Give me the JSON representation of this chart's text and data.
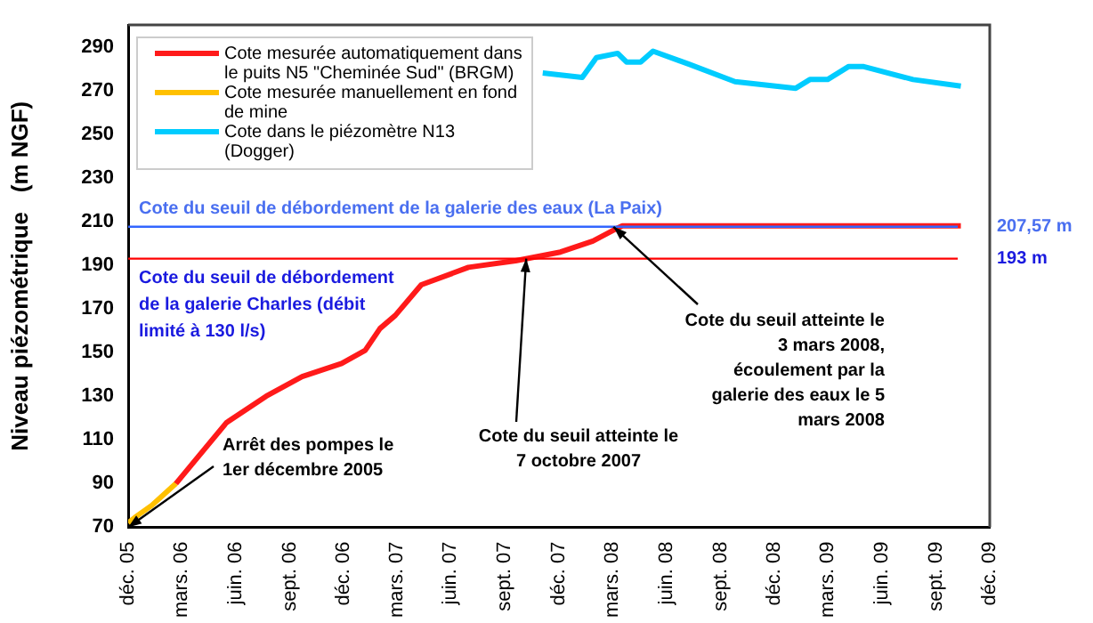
{
  "chart_data": {
    "type": "line",
    "ylabel": "Niveau piézométrique   (m NGF)",
    "ylim": [
      70,
      300
    ],
    "yticks": [
      70,
      90,
      110,
      130,
      150,
      170,
      190,
      210,
      230,
      250,
      270,
      290
    ],
    "xlim": [
      "2005-12-01",
      "2009-12-01"
    ],
    "xticks": [
      {
        "value": "2005-12-01",
        "label": "déc. 05"
      },
      {
        "value": "2006-03-01",
        "label": "mars. 06"
      },
      {
        "value": "2006-06-01",
        "label": "juin. 06"
      },
      {
        "value": "2006-09-01",
        "label": "sept. 06"
      },
      {
        "value": "2006-12-01",
        "label": "déc. 06"
      },
      {
        "value": "2007-03-01",
        "label": "mars. 07"
      },
      {
        "value": "2007-06-01",
        "label": "juin. 07"
      },
      {
        "value": "2007-09-01",
        "label": "sept. 07"
      },
      {
        "value": "2007-12-01",
        "label": "déc. 07"
      },
      {
        "value": "2008-03-01",
        "label": "mars. 08"
      },
      {
        "value": "2008-06-01",
        "label": "juin. 08"
      },
      {
        "value": "2008-09-01",
        "label": "sept. 08"
      },
      {
        "value": "2008-12-01",
        "label": "déc. 08"
      },
      {
        "value": "2009-03-01",
        "label": "mars. 09"
      },
      {
        "value": "2009-06-01",
        "label": "juin. 09"
      },
      {
        "value": "2009-09-01",
        "label": "sept. 09"
      },
      {
        "value": "2009-12-01",
        "label": "déc. 09"
      }
    ],
    "grid": false,
    "legend": "top left",
    "marker": "none",
    "line_style": "solid",
    "series": [
      {
        "name": "Cote mesurée automatiquement dans le puits N5 \"Cheminée Sud\" (BRGM)",
        "color": "#ff1a1a",
        "x": [
          "2006-02-20",
          "2006-05-17",
          "2006-07-23",
          "2006-09-22",
          "2006-11-28",
          "2007-01-07",
          "2007-02-01",
          "2007-02-27",
          "2007-04-12",
          "2007-07-01",
          "2007-09-19",
          "2007-12-04",
          "2008-01-28",
          "2008-03-10",
          "2008-03-18",
          "2008-06-01",
          "2008-12-01",
          "2009-06-01",
          "2009-10-13"
        ],
        "values": [
          90,
          118,
          130,
          139,
          145,
          151,
          161,
          167,
          181,
          189,
          192,
          196,
          201,
          207,
          208,
          208,
          208,
          208,
          208
        ]
      },
      {
        "name": "Cote mesurée manuellement en fond de mine",
        "color": "#ffc000",
        "x": [
          "2005-12-01",
          "2005-12-15",
          "2006-01-10",
          "2006-02-20"
        ],
        "values": [
          72,
          75,
          80,
          90
        ]
      },
      {
        "name": "Cote dans le piézomètre N13 (Dogger)",
        "color": "#00ccff",
        "x": [
          "2007-11-04",
          "2008-01-10",
          "2008-02-03",
          "2008-03-10",
          "2008-03-25",
          "2008-04-18",
          "2008-05-09",
          "2008-07-09",
          "2008-09-25",
          "2009-01-06",
          "2009-01-30",
          "2009-03-01",
          "2009-04-06",
          "2009-04-30",
          "2009-07-24",
          "2009-10-13"
        ],
        "values": [
          278,
          276,
          285,
          287,
          283,
          283,
          288,
          282,
          274,
          271,
          275,
          275,
          281,
          281,
          275,
          272
        ]
      }
    ],
    "ref_lines": [
      {
        "axis": "y",
        "value": 207.57,
        "label": "207,57 m",
        "color": "#3366ff"
      },
      {
        "axis": "y",
        "value": 193,
        "label": "193 m",
        "color": "#ff0000"
      }
    ],
    "annotations": [
      {
        "text": "Arrêt des pompes le 1er décembre 2005",
        "x": "2005-12-01",
        "y": 70
      },
      {
        "text": "Cote du seuil atteinte le 7 octobre 2007",
        "x": "2007-10-07",
        "y": 193
      },
      {
        "text": "Cote du seuil atteinte le 3 mars 2008, écoulement par la galerie des eaux le 5 mars 2008",
        "x": "2008-03-03",
        "y": 207.57
      },
      "Cote du seuil de débordement de la galerie des eaux (La Paix)",
      "Cote du seuil de débordement de la galerie Charles (débit limité à 130 l/s)"
    ]
  }
}
